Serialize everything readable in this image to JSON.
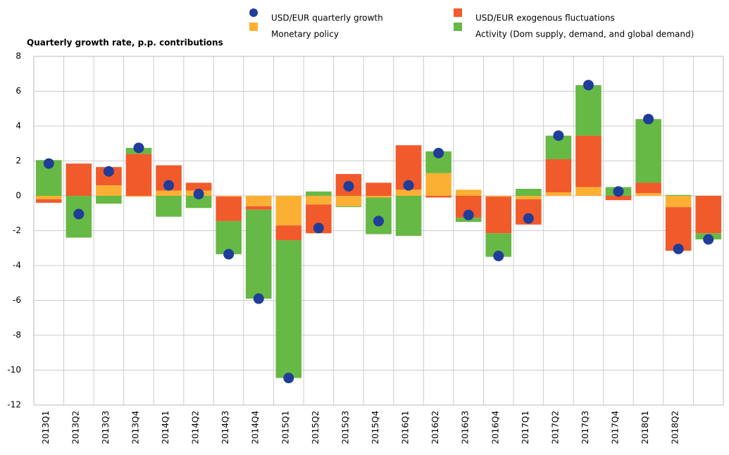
{
  "chart_data": {
    "type": "bar",
    "stacked": true,
    "y_label": "Quarterly growth rate, p.p. contributions",
    "categories": [
      "2013Q1",
      "2013Q2",
      "2013Q3",
      "2013Q4",
      "2014Q1",
      "2014Q2",
      "2014Q3",
      "2014Q4",
      "2015Q1",
      "2015Q2",
      "2015Q3",
      "2015Q4",
      "2016Q1",
      "2016Q2",
      "2016Q3",
      "2016Q4",
      "2017Q1",
      "2017Q2",
      "2017Q3",
      "2017Q4",
      "2018Q1",
      "2018Q2",
      null
    ],
    "series": [
      {
        "name": "USD/EUR quarterly growth",
        "type": "scatter",
        "color": "#1f3d99",
        "values": [
          1.85,
          -1.05,
          1.4,
          2.75,
          0.6,
          0.1,
          -3.35,
          -5.9,
          -10.45,
          -1.85,
          0.55,
          -1.45,
          0.6,
          2.45,
          -1.1,
          -3.45,
          -1.3,
          3.45,
          6.35,
          0.25,
          4.4,
          -3.05,
          -2.5
        ]
      },
      {
        "name": "Monetary policy",
        "type": "bar",
        "color": "#fbb034",
        "values": [
          -0.2,
          0,
          0.6,
          -0.05,
          0.3,
          0.3,
          -0.05,
          -0.6,
          -1.7,
          -0.5,
          -0.6,
          -0.1,
          0.35,
          1.3,
          0.35,
          -0.05,
          -0.2,
          0.2,
          0.5,
          0,
          0.15,
          -0.65,
          0
        ]
      },
      {
        "name": "USD/EUR exogenous fluctuations",
        "type": "bar",
        "color": "#f15a2b",
        "values": [
          -0.2,
          1.85,
          1.05,
          2.4,
          1.45,
          0.45,
          -1.4,
          -0.2,
          -0.85,
          -1.65,
          1.25,
          0.75,
          2.55,
          -0.1,
          -1.25,
          -2.1,
          -1.45,
          1.9,
          2.95,
          -0.25,
          0.6,
          -2.5,
          -2.15
        ]
      },
      {
        "name": "Activity (Dom supply, demand, and global demand)",
        "type": "bar",
        "color": "#66b944",
        "values": [
          2.05,
          -2.4,
          -0.45,
          0.35,
          -1.2,
          -0.7,
          -1.9,
          -5.1,
          -7.9,
          0.25,
          -0.05,
          -2.1,
          -2.3,
          1.25,
          -0.25,
          -1.35,
          0.4,
          1.35,
          2.9,
          0.5,
          3.65,
          0.05,
          -0.35
        ]
      }
    ],
    "ylim": [
      -12,
      8
    ],
    "yticks": [
      -12,
      -10,
      -8,
      -6,
      -4,
      -2,
      0,
      2,
      4,
      6,
      8
    ],
    "grid": true
  }
}
